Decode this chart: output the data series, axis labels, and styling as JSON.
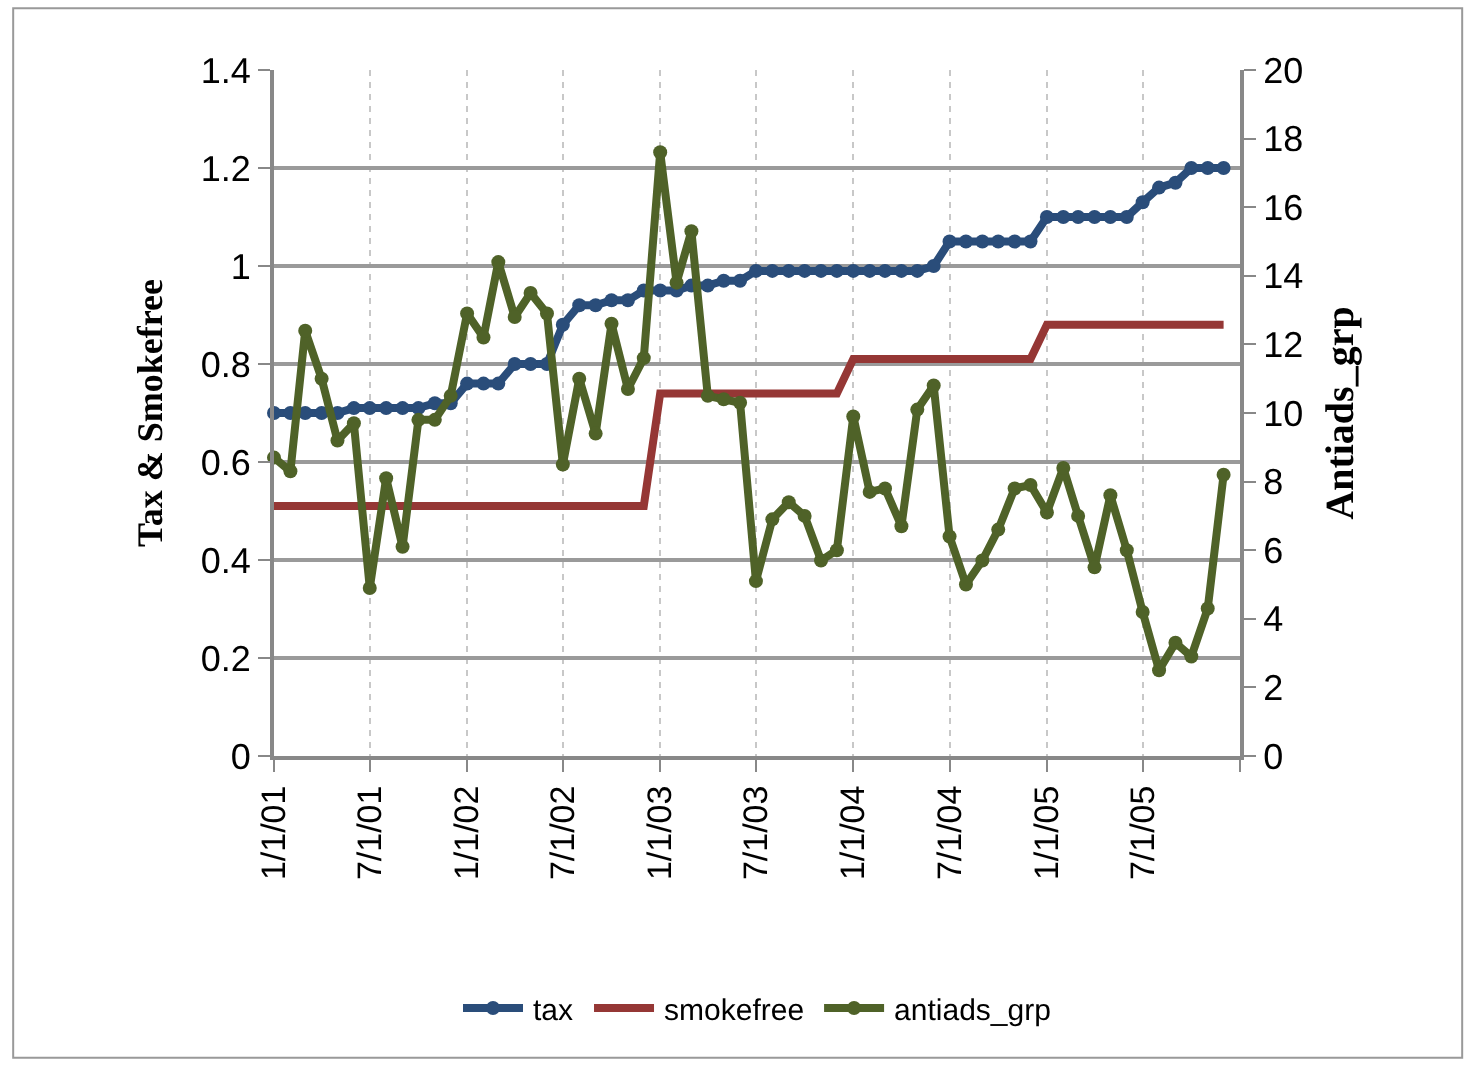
{
  "chart_data": {
    "type": "line",
    "xlabel": null,
    "ylabel": "Tax & Smokefree",
    "y2label": "Antiads_grp",
    "x": [
      "2001-01",
      "2001-02",
      "2001-03",
      "2001-04",
      "2001-05",
      "2001-06",
      "2001-07",
      "2001-08",
      "2001-09",
      "2001-10",
      "2001-11",
      "2001-12",
      "2002-01",
      "2002-02",
      "2002-03",
      "2002-04",
      "2002-05",
      "2002-06",
      "2002-07",
      "2002-08",
      "2002-09",
      "2002-10",
      "2002-11",
      "2002-12",
      "2003-01",
      "2003-02",
      "2003-03",
      "2003-04",
      "2003-05",
      "2003-06",
      "2003-07",
      "2003-08",
      "2003-09",
      "2003-10",
      "2003-11",
      "2003-12",
      "2004-01",
      "2004-02",
      "2004-03",
      "2004-04",
      "2004-05",
      "2004-06",
      "2004-07",
      "2004-08",
      "2004-09",
      "2004-10",
      "2004-11",
      "2004-12",
      "2005-01",
      "2005-02",
      "2005-03",
      "2005-04",
      "2005-05",
      "2005-06",
      "2005-07",
      "2005-08",
      "2005-09",
      "2005-10",
      "2005-11",
      "2005-12"
    ],
    "series": [
      {
        "name": "tax",
        "color": "#2a4d7a",
        "marker": "circle",
        "values": [
          0.7,
          0.7,
          0.7,
          0.7,
          0.7,
          0.71,
          0.71,
          0.71,
          0.71,
          0.71,
          0.72,
          0.72,
          0.76,
          0.76,
          0.76,
          0.8,
          0.8,
          0.8,
          0.88,
          0.92,
          0.92,
          0.93,
          0.93,
          0.95,
          0.95,
          0.95,
          0.96,
          0.96,
          0.97,
          0.97,
          0.99,
          0.99,
          0.99,
          0.99,
          0.99,
          0.99,
          0.99,
          0.99,
          0.99,
          0.99,
          0.99,
          1.0,
          1.05,
          1.05,
          1.05,
          1.05,
          1.05,
          1.05,
          1.1,
          1.1,
          1.1,
          1.1,
          1.1,
          1.1,
          1.13,
          1.16,
          1.17,
          1.2,
          1.2,
          1.2
        ]
      },
      {
        "name": "smokefree",
        "color": "#953735",
        "marker": "none",
        "values": [
          0.51,
          0.51,
          0.51,
          0.51,
          0.51,
          0.51,
          0.51,
          0.51,
          0.51,
          0.51,
          0.51,
          0.51,
          0.51,
          0.51,
          0.51,
          0.51,
          0.51,
          0.51,
          0.51,
          0.51,
          0.51,
          0.51,
          0.51,
          0.51,
          0.74,
          0.74,
          0.74,
          0.74,
          0.74,
          0.74,
          0.74,
          0.74,
          0.74,
          0.74,
          0.74,
          0.74,
          0.81,
          0.81,
          0.81,
          0.81,
          0.81,
          0.81,
          0.81,
          0.81,
          0.81,
          0.81,
          0.81,
          0.81,
          0.88,
          0.88,
          0.88,
          0.88,
          0.88,
          0.88,
          0.88,
          0.88,
          0.88,
          0.88,
          0.88,
          0.88
        ]
      },
      {
        "name": "antiads_grp",
        "color": "#4f6228",
        "marker": "circle",
        "axis": "y2",
        "values": [
          8.7,
          8.3,
          12.4,
          11.0,
          9.2,
          9.7,
          4.9,
          8.1,
          6.1,
          9.8,
          9.8,
          10.5,
          12.9,
          12.2,
          14.4,
          12.8,
          13.5,
          12.9,
          8.5,
          11.0,
          9.4,
          12.6,
          10.7,
          11.6,
          17.6,
          13.8,
          15.3,
          10.5,
          10.4,
          10.3,
          5.1,
          6.9,
          7.4,
          7.0,
          5.7,
          6.0,
          9.9,
          7.7,
          7.8,
          6.7,
          10.1,
          10.8,
          6.4,
          5.0,
          5.7,
          6.6,
          7.8,
          7.9,
          7.1,
          8.4,
          7.0,
          5.5,
          7.6,
          6.0,
          4.2,
          2.5,
          3.3,
          2.9,
          4.3,
          8.2
        ]
      }
    ],
    "xlim": [
      "2001-01-01",
      "2006-01-01"
    ],
    "xticks": [
      {
        "value": "2001-01-01",
        "label": "1/1/01"
      },
      {
        "value": "2001-07-01",
        "label": "7/1/01"
      },
      {
        "value": "2002-01-01",
        "label": "1/1/02"
      },
      {
        "value": "2002-07-01",
        "label": "7/1/02"
      },
      {
        "value": "2003-01-01",
        "label": "1/1/03"
      },
      {
        "value": "2003-07-01",
        "label": "7/1/03"
      },
      {
        "value": "2004-01-01",
        "label": "1/1/04"
      },
      {
        "value": "2004-07-01",
        "label": "7/1/04"
      },
      {
        "value": "2005-01-01",
        "label": "1/1/05"
      },
      {
        "value": "2005-07-01",
        "label": "7/1/05"
      },
      {
        "value": "2006-01-01",
        "label": null
      }
    ],
    "ylim": [
      0,
      1.4
    ],
    "yticks": [
      0,
      0.2,
      0.4,
      0.6,
      0.8,
      1,
      1.2,
      1.4
    ],
    "y2lim": [
      0,
      20
    ],
    "y2ticks": [
      0,
      2,
      4,
      6,
      8,
      10,
      12,
      14,
      16,
      18,
      20
    ],
    "grid": true,
    "legend": "bottom",
    "line_style": "solid"
  }
}
